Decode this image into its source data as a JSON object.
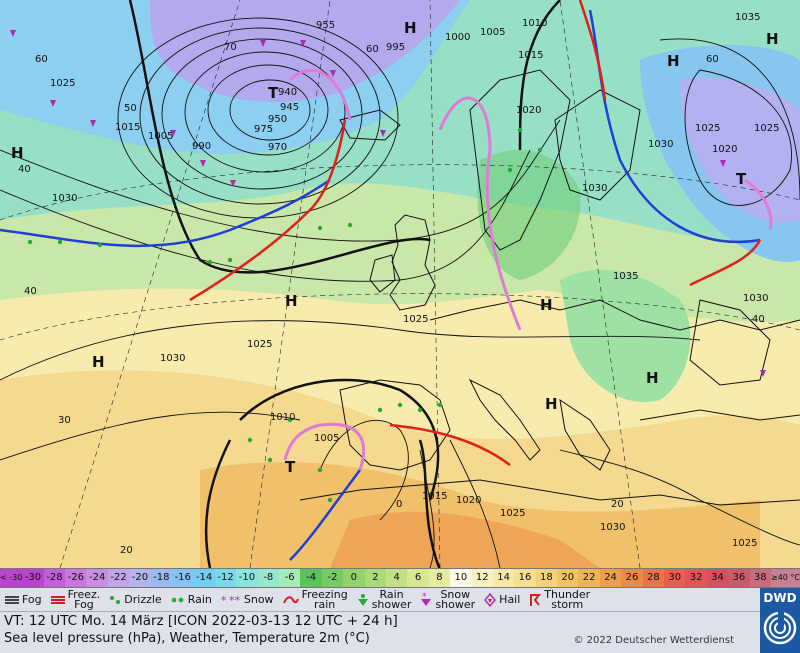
{
  "map": {
    "isobars": {
      "labels": [
        "955",
        "1010",
        "1035",
        "1000",
        "1005",
        "1015",
        "1025",
        "1015",
        "1005",
        "990",
        "970",
        "950",
        "945",
        "940",
        "1020",
        "1020",
        "1025",
        "1025",
        "1030",
        "1030",
        "1030",
        "1035",
        "1030",
        "1025",
        "1025",
        "1030",
        "1010",
        "1005",
        "1015",
        "1020",
        "1025",
        "1030",
        "1025",
        "995",
        "975"
      ],
      "temp_isolines": [
        "60",
        "50",
        "40",
        "40",
        "30",
        "20",
        "60",
        "40",
        "20",
        "0",
        "70",
        "60"
      ]
    },
    "pressure_centers": [
      {
        "type": "H",
        "text": "H"
      },
      {
        "type": "H",
        "text": "H"
      },
      {
        "type": "H",
        "text": "H"
      },
      {
        "type": "H",
        "text": "H"
      },
      {
        "type": "H",
        "text": "H"
      },
      {
        "type": "H",
        "text": "H"
      },
      {
        "type": "H",
        "text": "H"
      },
      {
        "type": "H",
        "text": "H"
      },
      {
        "type": "H",
        "text": "H"
      },
      {
        "type": "T",
        "text": "T"
      },
      {
        "type": "T",
        "text": "T"
      },
      {
        "type": "T",
        "text": "T"
      }
    ]
  },
  "scale": {
    "colors": [
      "#bb44cc",
      "#c25ed6",
      "#c777dd",
      "#c78fe2",
      "#c2a5e8",
      "#b3b3ee",
      "#99b9f0",
      "#86c3f2",
      "#74cdf2",
      "#7ad9e8",
      "#8ae3dc",
      "#96e8cc",
      "#a7ecb8",
      "#5cc25c",
      "#78ca62",
      "#93d26a",
      "#abd977",
      "#c2df84",
      "#d8e691",
      "#e6eca3",
      "#fbfbea",
      "#f7f0c0",
      "#f6e8a6",
      "#f5df90",
      "#f2d27b",
      "#f0c465",
      "#efb355",
      "#ee9f4a",
      "#ec8a48",
      "#ea7448",
      "#e65f50",
      "#e0545a",
      "#d74f60",
      "#cd5a6a",
      "#c86b7a",
      "#c88094"
    ],
    "labels": [
      "<\n-30",
      "-30",
      "-28",
      "-26",
      "-24",
      "-22",
      "-20",
      "-18",
      "-16",
      "-14",
      "-12",
      "-10",
      "-8",
      "-6",
      "-4",
      "-2",
      "0",
      "2",
      "4",
      "6",
      "8",
      "10",
      "12",
      "14",
      "16",
      "18",
      "20",
      "22",
      "24",
      "26",
      "28",
      "30",
      "32",
      "34",
      "36",
      "38",
      "≥40\n°C"
    ]
  },
  "legend": [
    {
      "icon": "fog-icon",
      "label": "Fog"
    },
    {
      "icon": "freezing-fog-icon",
      "label": "Freez.\nFog"
    },
    {
      "icon": "drizzle-icon",
      "label": "Drizzle"
    },
    {
      "icon": "rain-icon",
      "label": "Rain"
    },
    {
      "icon": "snow-icon",
      "label": "Snow"
    },
    {
      "icon": "freezing-rain-icon",
      "label": "Freezing\nrain"
    },
    {
      "icon": "rain-shower-icon",
      "label": "Rain\nshower"
    },
    {
      "icon": "snow-shower-icon",
      "label": "Snow\nshower"
    },
    {
      "icon": "hail-icon",
      "label": "Hail"
    },
    {
      "icon": "thunderstorm-icon",
      "label": "Thunder\nstorm"
    }
  ],
  "info": {
    "vt_line": "VT: 12 UTC Mo.  14 März [ICON 2022-03-13  12 UTC + 24 h]",
    "desc_line": "Sea level pressure (hPa), Weather, Temperature 2m (°C)",
    "copyright": "© 2022 Deutscher Wetterdienst",
    "logo_text": "DWD"
  },
  "colors": {
    "land_outline": "#111111",
    "cold_front": "#1f3fd6",
    "warm_front": "#e0201a",
    "occlusion": "#e07ad6",
    "rain_symbol": "#22aa33",
    "snow_symbol": "#b02ab0",
    "logo_bg": "#1b5aa3"
  }
}
